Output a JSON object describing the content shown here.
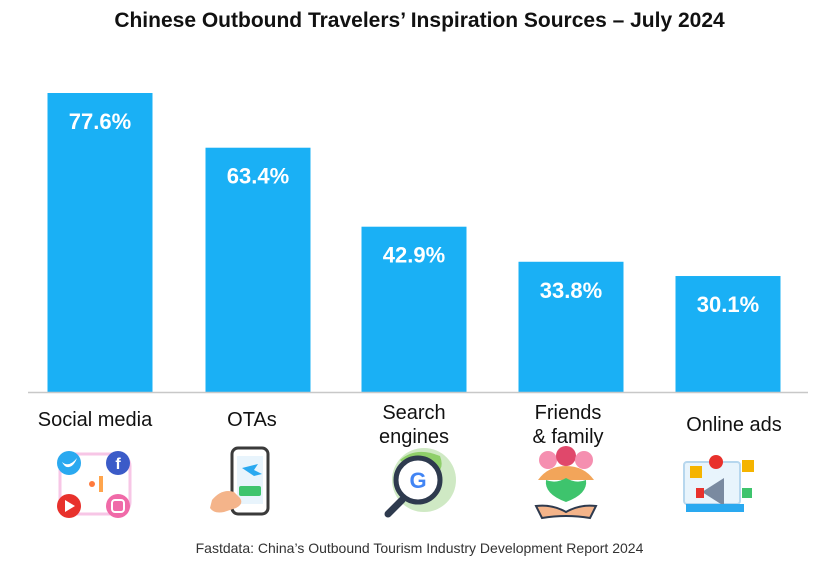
{
  "chart_data": {
    "type": "bar",
    "title": "Chinese Outbound Travelers’ Inspiration Sources – July 2024",
    "categories": [
      "Social media",
      "OTAs",
      "Search engines",
      "Friends & family",
      "Online ads"
    ],
    "category_lines": [
      [
        "Social media"
      ],
      [
        "OTAs"
      ],
      [
        "Search",
        "engines"
      ],
      [
        "Friends",
        "& family"
      ],
      [
        "Online ads"
      ]
    ],
    "values": [
      77.6,
      63.4,
      42.9,
      33.8,
      30.1
    ],
    "data_labels": [
      "77.6%",
      "63.4%",
      "42.9%",
      "33.8%",
      "30.1%"
    ],
    "ylim": [
      0,
      77.6
    ],
    "grid": false,
    "bar_color": "#1ab0f5",
    "icons": [
      "social-media-icon",
      "mobile-booking-icon",
      "search-engine-icon",
      "friends-family-icon",
      "online-ads-icon"
    ]
  },
  "source": "Fastdata: China’s Outbound Tourism Industry Development Report 2024"
}
